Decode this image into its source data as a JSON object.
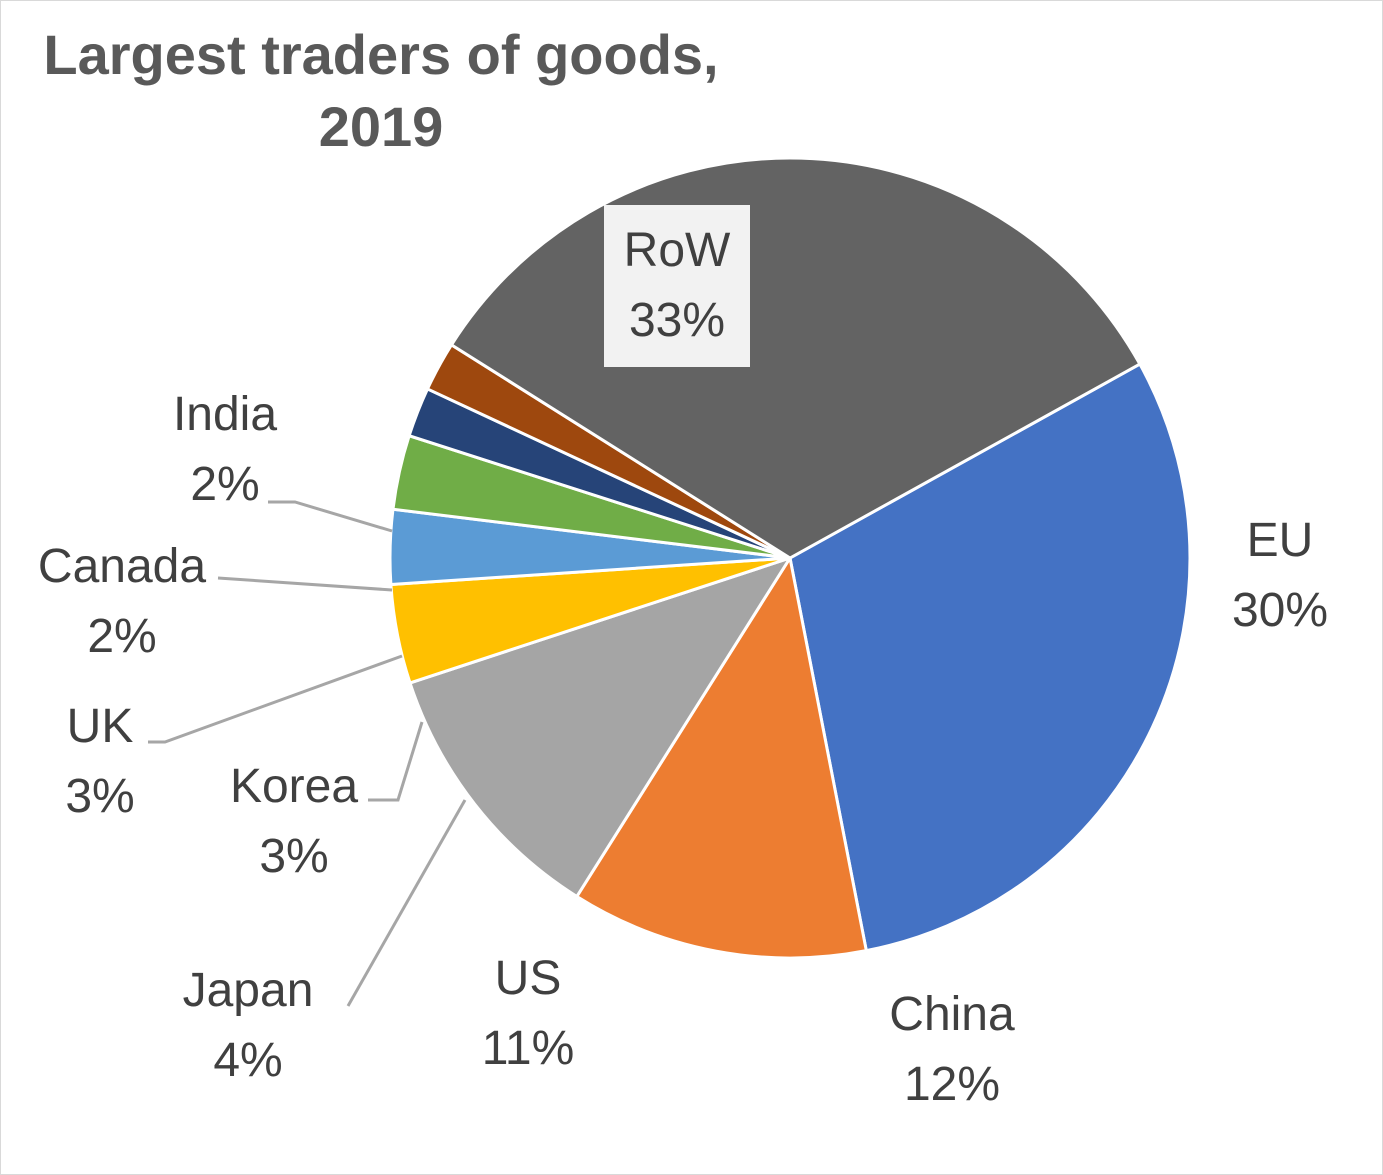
{
  "chart_data": {
    "type": "pie",
    "title_line1": "Largest traders of goods,",
    "title_line2": "2019",
    "slices": [
      {
        "name": "EU",
        "value": 30,
        "label": "30%",
        "color": "#4472C4"
      },
      {
        "name": "China",
        "value": 12,
        "label": "12%",
        "color": "#ED7D31"
      },
      {
        "name": "US",
        "value": 11,
        "label": "11%",
        "color": "#A5A5A5"
      },
      {
        "name": "Japan",
        "value": 4,
        "label": "4%",
        "color": "#FFC000"
      },
      {
        "name": "Korea",
        "value": 3,
        "label": "3%",
        "color": "#5B9BD5"
      },
      {
        "name": "UK",
        "value": 3,
        "label": "3%",
        "color": "#70AD47"
      },
      {
        "name": "Canada",
        "value": 2,
        "label": "2%",
        "color": "#264478"
      },
      {
        "name": "India",
        "value": 2,
        "label": "2%",
        "color": "#9E480E"
      },
      {
        "name": "RoW",
        "value": 33,
        "label": "33%",
        "color": "#636363"
      }
    ],
    "legend": "none",
    "data_labels": "category name and percentage"
  }
}
